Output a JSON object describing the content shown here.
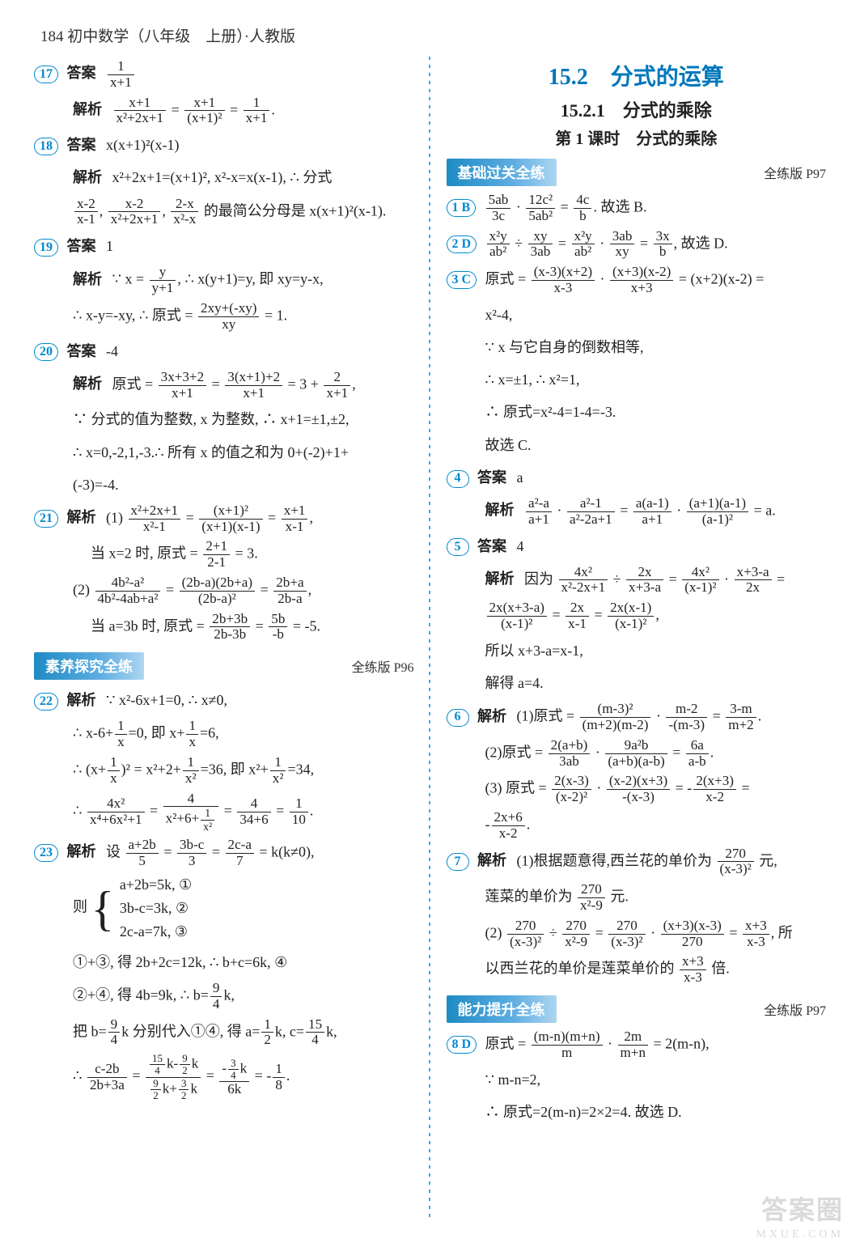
{
  "header": "184 初中数学（八年级　上册）·人教版",
  "left": {
    "q17": {
      "num": "17",
      "label": "答案",
      "answer_frac": {
        "num": "1",
        "den": "x+1"
      },
      "expl_label": "解析",
      "expl": "(x+1)/(x²+2x+1) = (x+1)/(x+1)² = 1/(x+1)."
    },
    "q18": {
      "num": "18",
      "label": "答案",
      "answer": "x(x+1)²(x-1)",
      "expl_label": "解析",
      "expl1": "x²+2x+1=(x+1)², x²-x=x(x-1), ∴ 分式",
      "expl2": "(x-2)/(x-1), (x-2)/(x²+2x+1), (2-x)/(x²-x) 的最简公分母是 x(x+1)²(x-1)."
    },
    "q19": {
      "num": "19",
      "label": "答案",
      "answer": "1",
      "expl_label": "解析",
      "expl1": "∵ x = y/(y+1), ∴ x(y+1)=y, 即 xy=y-x,",
      "expl2": "∴ x-y=-xy, ∴ 原式 = (2xy+(-xy))/xy = 1."
    },
    "q20": {
      "num": "20",
      "label": "答案",
      "answer": "-4",
      "expl_label": "解析",
      "expl1": "原式 = (3x+3+2)/(x+1) = (3(x+1)+2)/(x+1) = 3 + 2/(x+1),",
      "expl2": "∵ 分式的值为整数, x 为整数, ∴ x+1=±1,±2,",
      "expl3": "∴ x=0,-2,1,-3.∴ 所有 x 的值之和为 0+(-2)+1+",
      "expl4": "(-3)=-4."
    },
    "q21": {
      "num": "21",
      "expl_label": "解析",
      "part1a": "(1) (x²+2x+1)/(x²-1) = (x+1)²/((x+1)(x-1)) = (x+1)/(x-1),",
      "part1b": "当 x=2 时, 原式 = (2+1)/(2-1) = 3.",
      "part2a": "(2) (4b²-a²)/(4b²-4ab+a²) = ((2b-a)(2b+a))/(2b-a)² = (2b+a)/(2b-a),",
      "part2b": "当 a=3b 时, 原式 = (2b+3b)/(2b-3b) = 5b/(-b) = -5."
    },
    "section1": {
      "title": "素养探究全练",
      "ref": "全练版 P96"
    },
    "q22": {
      "num": "22",
      "expl_label": "解析",
      "l1": "∵ x²-6x+1=0, ∴ x≠0,",
      "l2": "∴ x-6+1/x=0, 即 x+1/x=6,",
      "l3": "∴ (x+1/x)² = x²+2+1/x² = 36, 即 x²+1/x² = 34,",
      "l4": "∴ 4x²/(x⁴+6x²+1) = 4/(x²+6+1/x²) = 4/(34+6) = 1/10."
    },
    "q23": {
      "num": "23",
      "expl_label": "解析",
      "l1": "设 (a+2b)/5 = (3b-c)/3 = (2c-a)/7 = k(k≠0),",
      "sys1": "a+2b=5k, ①",
      "sys2": "3b-c=3k, ②",
      "sys3": "2c-a=7k, ③",
      "l2": "①+③, 得 2b+2c=12k, ∴ b+c=6k, ④",
      "l3": "②+④, 得 4b=9k, ∴ b=(9/4)k,",
      "l4": "把 b=(9/4)k 分别代入①④, 得 a=(1/2)k, c=(15/4)k,",
      "l5": "∴ (c-2b)/(2b+3a) = ((15/4)k-(9/2)k)/((9/2)k+(3/2)k) = (-(3/4)k)/(6k) = -1/8."
    }
  },
  "right": {
    "title1": "15.2　分式的运算",
    "title2": "15.2.1　分式的乘除",
    "title3": "第 1 课时　分式的乘除",
    "section_basic": {
      "title": "基础过关全练",
      "ref": "全练版 P97"
    },
    "q1": {
      "num": "1 B",
      "text": "(5ab/3c)·(12c²/5ab²) = 4c/b. 故选 B."
    },
    "q2": {
      "num": "2 D",
      "text": "(x²y/ab²)÷(xy/3ab) = (x²y/ab²)·(3ab/xy) = 3x/b, 故选 D."
    },
    "q3": {
      "num": "3 C",
      "l1": "原式 = ((x-3)(x+2))/(x-3) · ((x+3)(x-2))/(x+3) = (x+2)(x-2) =",
      "l2": "x²-4,",
      "l3": "∵ x 与它自身的倒数相等,",
      "l4": "∴ x=±1, ∴ x²=1,",
      "l5": "∴ 原式=x²-4=1-4=-3.",
      "l6": "故选 C."
    },
    "q4": {
      "num": "4",
      "label": "答案",
      "answer": "a",
      "expl_label": "解析",
      "expl": "(a²-a)/(a+1) · (a²-1)/(a²-2a+1) = (a(a-1))/(a+1) · ((a+1)(a-1))/(a-1)² = a."
    },
    "q5": {
      "num": "5",
      "label": "答案",
      "answer": "4",
      "expl_label": "解析",
      "l1": "因为 (4x²)/(x²-2x+1) ÷ (2x)/(x+3-a) = (4x²)/(x-1)² · (x+3-a)/(2x) =",
      "l2": "(2x(x+3-a))/(x-1)² = (2x)/(x-1) = (2x(x-1))/(x-1)²,",
      "l3": "所以 x+3-a=x-1,",
      "l4": "解得 a=4."
    },
    "q6": {
      "num": "6",
      "expl_label": "解析",
      "l1": "(1)原式 = (m-3)²/((m+2)(m-2)) · (m-2)/(-(m-3)) = (3-m)/(m+2).",
      "l2": "(2)原式 = (2(a+b))/(3ab) · (9a²b)/((a+b)(a-b)) = 6a/(a-b).",
      "l3a": "(3) 原式 = (2(x-3))/(x-2)² · ((x-2)(x+3))/(-(x-3)) = -(2(x+3))/(x-2) =",
      "l3b": "-(2x+6)/(x-2)."
    },
    "q7": {
      "num": "7",
      "expl_label": "解析",
      "l1": "(1)根据题意得,西兰花的单价为 270/(x-3)² 元,",
      "l2": "莲菜的单价为 270/(x²-9) 元.",
      "l3": "(2) (270/(x-3)²)÷(270/(x²-9)) = (270/(x-3)²)·((x+3)(x-3))/270 = (x+3)/(x-3), 所",
      "l4": "以西兰花的单价是莲菜单价的 (x+3)/(x-3) 倍."
    },
    "section_ability": {
      "title": "能力提升全练",
      "ref": "全练版 P97"
    },
    "q8": {
      "num": "8 D",
      "l1": "原式 = ((m-n)(m+n))/m · (2m)/(m+n) = 2(m-n),",
      "l2": "∵ m-n=2,",
      "l3": "∴ 原式=2(m-n)=2×2=4. 故选 D."
    }
  },
  "watermark": "答案圈",
  "watermark_sub": "MXUE.COM"
}
